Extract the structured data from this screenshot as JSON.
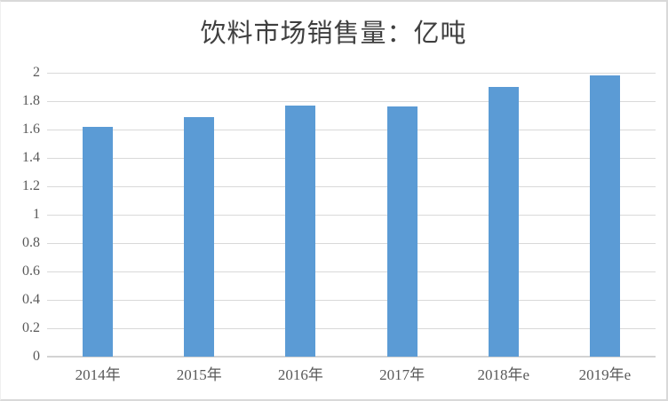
{
  "chart_data": {
    "type": "bar",
    "title": "饮料市场销售量：亿吨",
    "categories": [
      "2014年",
      "2015年",
      "2016年",
      "2017年",
      "2018年e",
      "2019年e"
    ],
    "values": [
      1.62,
      1.69,
      1.77,
      1.76,
      1.9,
      1.98
    ],
    "xlabel": "",
    "ylabel": "",
    "ylim": [
      0,
      2
    ],
    "yticks": [
      0,
      0.2,
      0.4,
      0.6,
      0.8,
      1,
      1.2,
      1.4,
      1.6,
      1.8,
      2
    ],
    "grid": true,
    "legend": "none",
    "bar_color": "#5B9BD5",
    "gridline_color": "#D9D9D9",
    "axis_text_color": "#595959",
    "title_color": "#3F3F3F",
    "background_color": "#FFFFFF",
    "frame_border_color": "#D9D9D9"
  }
}
